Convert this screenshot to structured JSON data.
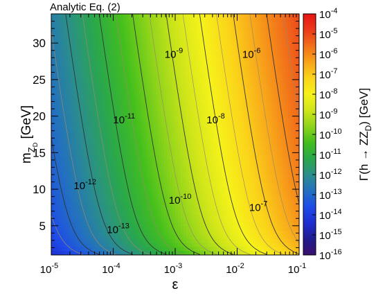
{
  "chart_data": {
    "type": "heatmap",
    "title": "Analytic Eq. (2)",
    "xlabel": "ε",
    "ylabel_main": "m",
    "ylabel_sub": "Z",
    "ylabel_subsub": "D",
    "ylabel_unit": " [GeV]",
    "colorbar_label": "Γ(h → ZZ",
    "colorbar_label_sub": "D",
    "colorbar_label_end": ") [GeV]",
    "x_scale": "log",
    "xlim": [
      1e-05,
      0.1
    ],
    "ylim": [
      1,
      34
    ],
    "x_ticks": [
      {
        "value": 1e-05,
        "base": "10",
        "exp": "-5"
      },
      {
        "value": 0.0001,
        "base": "10",
        "exp": "-4"
      },
      {
        "value": 0.001,
        "base": "10",
        "exp": "-3"
      },
      {
        "value": 0.01,
        "base": "10",
        "exp": "-2"
      },
      {
        "value": 0.1,
        "base": "10",
        "exp": "-1"
      }
    ],
    "y_ticks": [
      {
        "value": 5,
        "label": "5"
      },
      {
        "value": 10,
        "label": "10"
      },
      {
        "value": 15,
        "label": "15"
      },
      {
        "value": 20,
        "label": "20"
      },
      {
        "value": 25,
        "label": "25"
      },
      {
        "value": 30,
        "label": "30"
      }
    ],
    "colorbar": {
      "scale": "log",
      "range": [
        -16,
        -4
      ],
      "ticks": [
        {
          "exp": "-4",
          "value": -4
        },
        {
          "exp": "-5",
          "value": -5
        },
        {
          "exp": "-6",
          "value": -6
        },
        {
          "exp": "-7",
          "value": -7
        },
        {
          "exp": "-8",
          "value": -8
        },
        {
          "exp": "-9",
          "value": -9
        },
        {
          "exp": "-10",
          "value": -10
        },
        {
          "exp": "-11",
          "value": -11
        },
        {
          "exp": "-12",
          "value": -12
        },
        {
          "exp": "-13",
          "value": -13
        },
        {
          "exp": "-14",
          "value": -14
        },
        {
          "exp": "-15",
          "value": -15
        },
        {
          "exp": "-16",
          "value": -16
        }
      ],
      "colors": [
        "#3a0f6e",
        "#1f1c8f",
        "#1e2ed0",
        "#1e4ce8",
        "#2370c0",
        "#2b8f8a",
        "#2aa84a",
        "#43bf1d",
        "#8ed41a",
        "#cfe51a",
        "#f6f21a",
        "#fbd41a",
        "#f8a41a",
        "#f2701a",
        "#eb3a1a",
        "#e61414"
      ]
    },
    "contours": [
      {
        "exp": "-13",
        "label": "10",
        "label_exp": "-13",
        "label_x": 0.00012,
        "label_y": 4
      },
      {
        "exp": "-12",
        "label": "10",
        "label_exp": "-12",
        "label_x": 3.5e-05,
        "label_y": 10
      },
      {
        "exp": "-11",
        "label": "10",
        "label_exp": "-11",
        "label_x": 0.00015,
        "label_y": 19
      },
      {
        "exp": "-10",
        "label": "10",
        "label_exp": "-10",
        "label_x": 0.0012,
        "label_y": 8
      },
      {
        "exp": "-9",
        "label": "10",
        "label_exp": "-9",
        "label_x": 0.00095,
        "label_y": 28
      },
      {
        "exp": "-8",
        "label": "10",
        "label_exp": "-8",
        "label_x": 0.0045,
        "label_y": 19
      },
      {
        "exp": "-7",
        "label": "10",
        "label_exp": "-7",
        "label_x": 0.022,
        "label_y": 7
      },
      {
        "exp": "-6",
        "label": "10",
        "label_exp": "-6",
        "label_x": 0.017,
        "label_y": 28
      }
    ]
  }
}
